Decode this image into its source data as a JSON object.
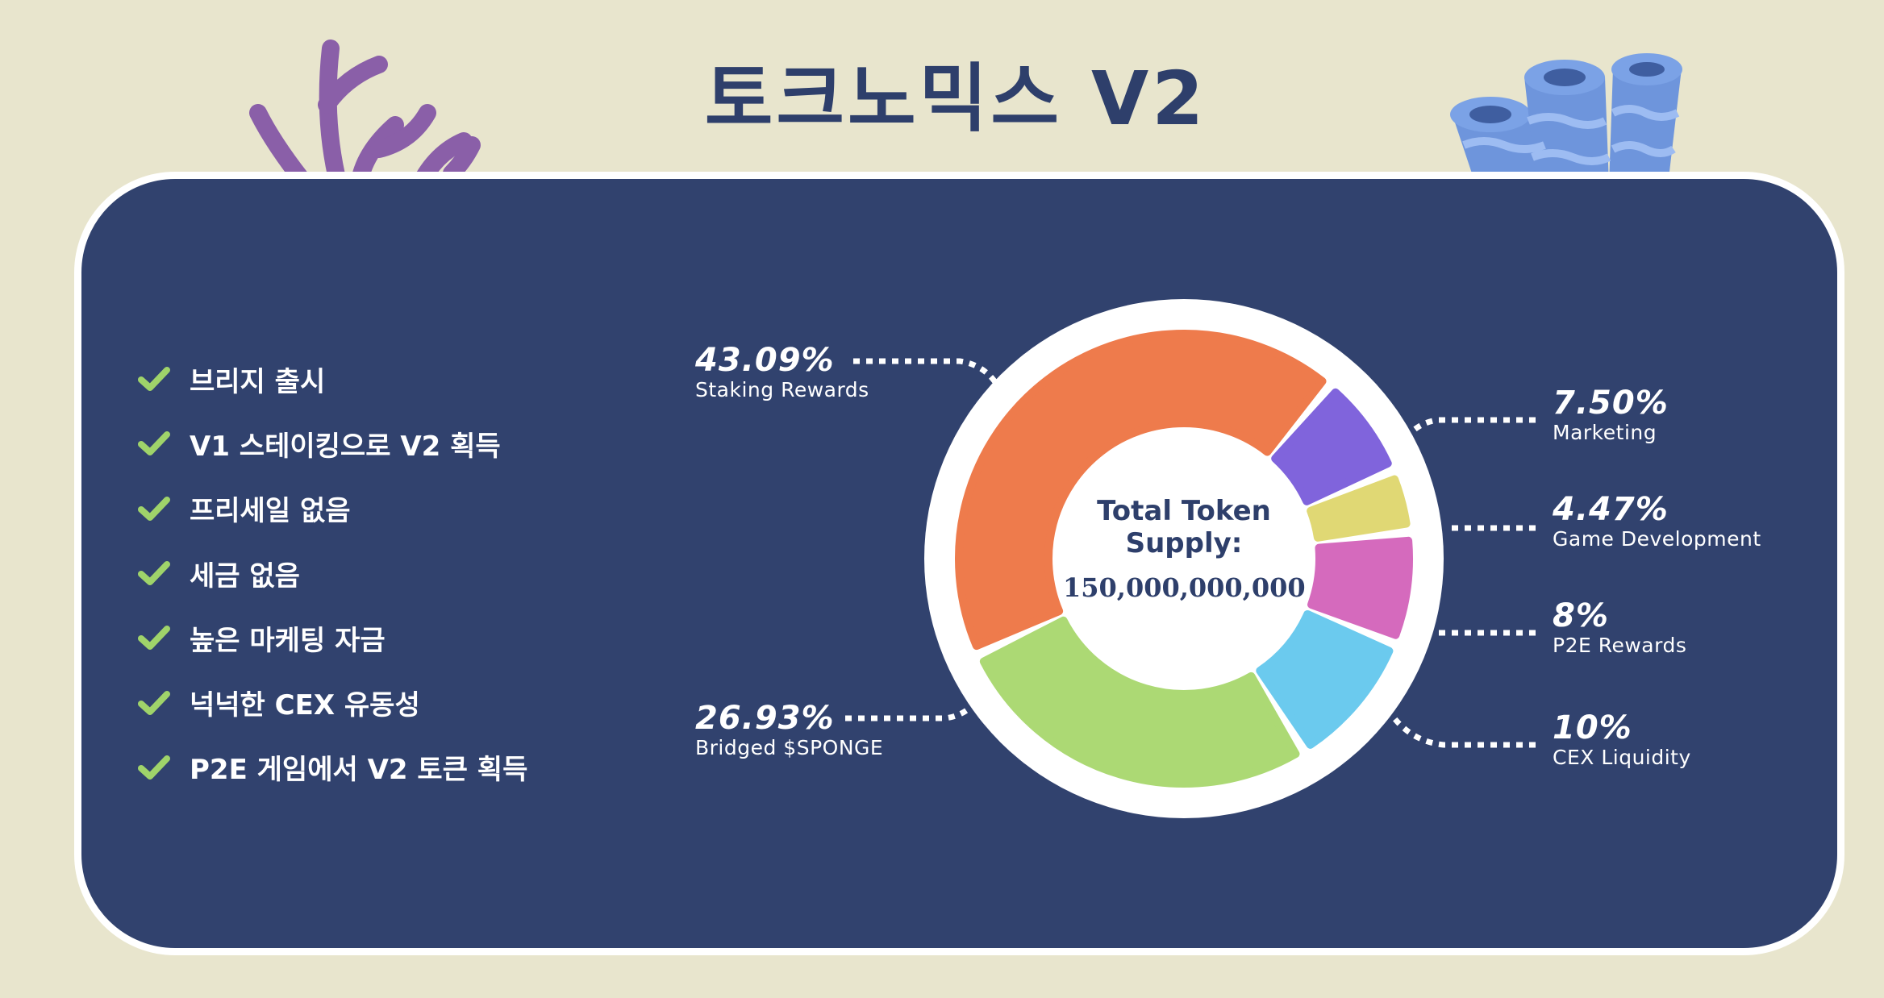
{
  "title": "토크노믹스 V2",
  "features": [
    "브리지 출시",
    "V1 스테이킹으로 V2 획득",
    "프리세일 없음",
    "세금 없음",
    "높은 마케팅 자금",
    "넉넉한 CEX 유동성",
    "P2E 게임에서 V2 토큰 획득"
  ],
  "colors": {
    "background": "#e8e5cd",
    "panel": "#31426e",
    "check": "#9fd36a",
    "text_dark": "#2e3f6b"
  },
  "chart_data": {
    "type": "pie",
    "variant": "donut",
    "center_label": {
      "line1": "Total Token",
      "line2": "Supply:",
      "value": "150,000,000,000"
    },
    "slices": [
      {
        "label": "Staking Rewards",
        "value": 43.09,
        "display": "43.09%",
        "color": "#ee7b4c"
      },
      {
        "label": "Marketing",
        "value": 7.5,
        "display": "7.50%",
        "color": "#8064dc"
      },
      {
        "label": "Game Development",
        "value": 4.47,
        "display": "4.47%",
        "color": "#e0d874"
      },
      {
        "label": "P2E Rewards",
        "value": 8,
        "display": "8%",
        "color": "#d56abd"
      },
      {
        "label": "CEX Liquidity",
        "value": 10,
        "display": "10%",
        "color": "#6bcaee"
      },
      {
        "label": "Bridged $SPONGE",
        "value": 26.93,
        "display": "26.93%",
        "color": "#acd974"
      }
    ]
  }
}
